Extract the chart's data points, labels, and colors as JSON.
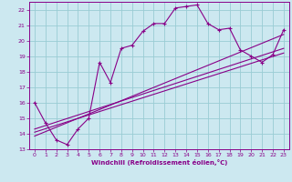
{
  "xlabel": "Windchill (Refroidissement éolien,°C)",
  "bg_color": "#cce8f0",
  "grid_color": "#99ccd4",
  "line_color": "#880088",
  "xlim": [
    -0.5,
    23.5
  ],
  "ylim": [
    13,
    22.5
  ],
  "xticks": [
    0,
    1,
    2,
    3,
    4,
    5,
    6,
    7,
    8,
    9,
    10,
    11,
    12,
    13,
    14,
    15,
    16,
    17,
    18,
    19,
    20,
    21,
    22,
    23
  ],
  "yticks": [
    13,
    14,
    15,
    16,
    17,
    18,
    19,
    20,
    21,
    22
  ],
  "main_series": [
    [
      0,
      16.0
    ],
    [
      1,
      14.7
    ],
    [
      2,
      13.6
    ],
    [
      3,
      13.3
    ],
    [
      4,
      14.3
    ],
    [
      5,
      15.0
    ],
    [
      6,
      18.6
    ],
    [
      7,
      17.3
    ],
    [
      8,
      19.5
    ],
    [
      9,
      19.7
    ],
    [
      10,
      20.6
    ],
    [
      11,
      21.1
    ],
    [
      12,
      21.1
    ],
    [
      13,
      22.1
    ],
    [
      14,
      22.2
    ],
    [
      15,
      22.3
    ],
    [
      16,
      21.1
    ],
    [
      17,
      20.7
    ],
    [
      18,
      20.8
    ],
    [
      19,
      19.4
    ],
    [
      20,
      19.0
    ],
    [
      21,
      18.6
    ],
    [
      22,
      19.1
    ],
    [
      23,
      20.7
    ]
  ],
  "line1": [
    [
      0,
      14.3
    ],
    [
      23,
      19.5
    ]
  ],
  "line2": [
    [
      0,
      14.1
    ],
    [
      23,
      19.2
    ]
  ],
  "line3": [
    [
      0,
      13.85
    ],
    [
      23,
      20.4
    ]
  ]
}
